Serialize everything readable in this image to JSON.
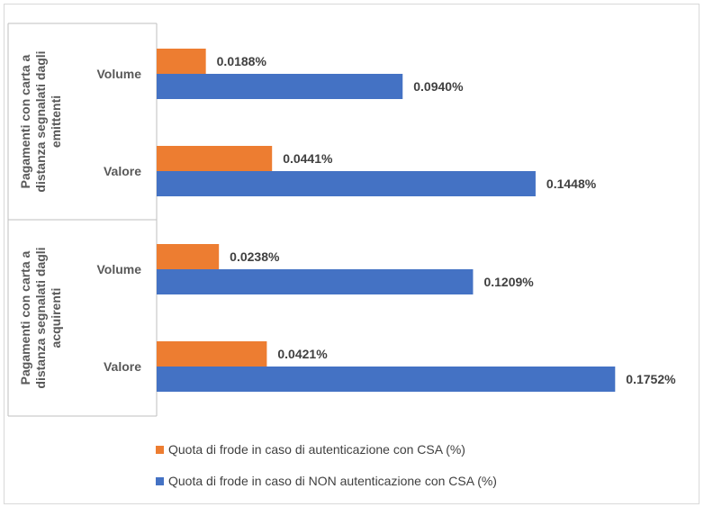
{
  "chart_data": {
    "type": "bar",
    "orientation": "horizontal",
    "groups": [
      {
        "label": "Pagamenti con carta a distanza segnalati dagli emittenti",
        "label_lines": [
          "Pagamenti con carta a",
          "distanza segnalati dagli",
          "emittenti"
        ],
        "categories": [
          "Volume",
          "Valore"
        ]
      },
      {
        "label": "Pagamenti con carta a distanza segnalati dagli acquirenti",
        "label_lines": [
          "Pagamenti con carta a",
          "distanza segnalati dagli",
          "acquirenti"
        ],
        "categories": [
          "Volume",
          "Valore"
        ]
      }
    ],
    "series": [
      {
        "name": "Quota di frode in caso di autenticazione con CSA (%)",
        "color": "#ED7D31",
        "values": [
          0.0188,
          0.0441,
          0.0238,
          0.0421
        ],
        "labels": [
          "0.0188%",
          "0.0441%",
          "0.0238%",
          "0.0421%"
        ]
      },
      {
        "name": "Quota di frode in caso di NON autenticazione con CSA (%)",
        "color": "#4472C4",
        "values": [
          0.094,
          0.1448,
          0.1209,
          0.1752
        ],
        "labels": [
          "0.0940%",
          "0.1448%",
          "0.1209%",
          "0.1752%"
        ]
      }
    ],
    "xlim": [
      0,
      0.18
    ],
    "grid": false,
    "legend_position": "bottom"
  }
}
